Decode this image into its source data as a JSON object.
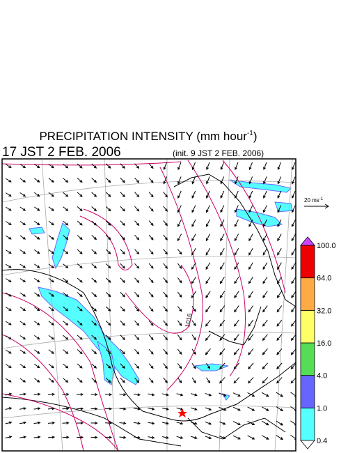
{
  "title": {
    "main": "PRECIPITATION INTENSITY (mm hour",
    "exponent": "-1",
    "close": ")"
  },
  "valid_time": "17 JST 2 FEB. 2006",
  "init_time": "(init. 9 JST 2 FEB. 2006)",
  "reference_vector": {
    "label": "20 ms",
    "exponent": "-1"
  },
  "contour_label": "1016",
  "colorbar": {
    "levels": [
      "0.4",
      "1.0",
      "4.0",
      "16.0",
      "32.0",
      "64.0",
      "100.0"
    ],
    "colors": [
      "#55ffff",
      "#6666ff",
      "#55dd55",
      "#ffff66",
      "#ffaa44",
      "#ee0000"
    ],
    "over_color": "#cc44ff",
    "under_color": "#ffffff"
  }
}
